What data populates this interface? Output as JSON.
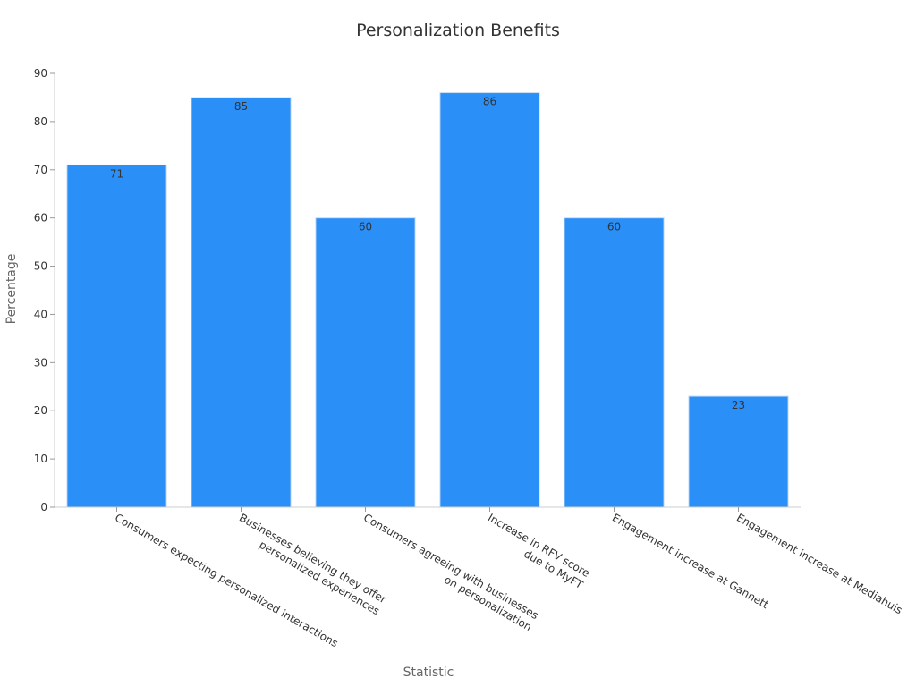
{
  "chart_data": {
    "type": "bar",
    "title": "Personalization Benefits",
    "xlabel": "Statistic",
    "ylabel": "Percentage",
    "ylim": [
      0,
      90
    ],
    "yticks": [
      0,
      10,
      20,
      30,
      40,
      50,
      60,
      70,
      80,
      90
    ],
    "grid": false,
    "legend": "none",
    "bar_color": "#2b8ff8",
    "categories": [
      [
        "Consumers expecting personalized interactions"
      ],
      [
        "Businesses believing they offer",
        "personalized experiences"
      ],
      [
        "Consumers agreeing with businesses",
        "on personalization"
      ],
      [
        "Increase in RFV score",
        "due to MyFT"
      ],
      [
        "Engagement increase at Gannett"
      ],
      [
        "Engagement increase at Mediahuis"
      ]
    ],
    "values": [
      71,
      85,
      60,
      86,
      60,
      23
    ]
  }
}
